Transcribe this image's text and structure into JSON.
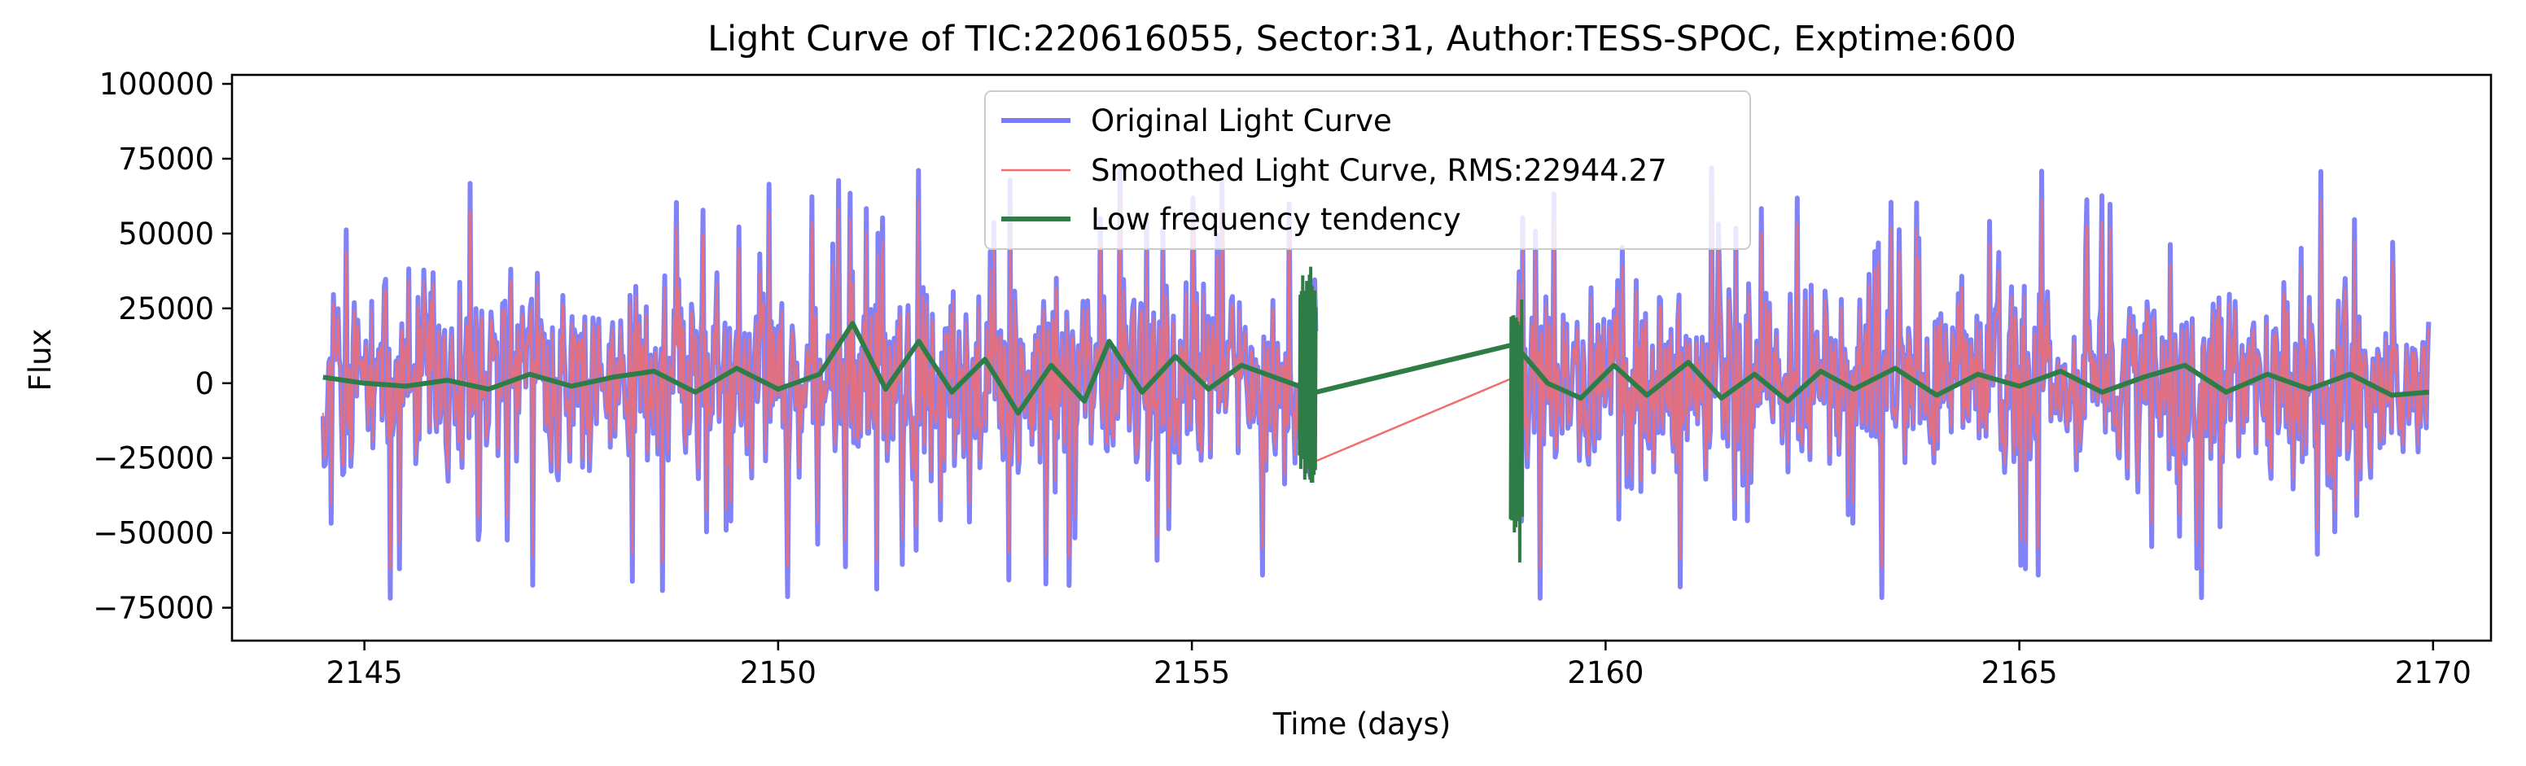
{
  "chart_data": {
    "type": "line",
    "title": "Light Curve of TIC:220616055, Sector:31, Author:TESS-SPOC, Exptime:600",
    "xlabel": "Time (days)",
    "ylabel": "Flux",
    "xlim": [
      2143.4,
      2170.7
    ],
    "ylim": [
      -86000,
      103000
    ],
    "xticks": [
      2145,
      2150,
      2155,
      2160,
      2165,
      2170
    ],
    "xtick_labels": [
      "2145",
      "2150",
      "2155",
      "2160",
      "2165",
      "2170"
    ],
    "yticks": [
      -75000,
      -50000,
      -25000,
      0,
      25000,
      50000,
      75000,
      100000
    ],
    "ytick_labels": [
      "−75000",
      "−50000",
      "−25000",
      "0",
      "25000",
      "50000",
      "75000",
      "100000"
    ],
    "grid": false,
    "legend_position": "top-center",
    "segments": [
      [
        2144.5,
        2156.5
      ],
      [
        2158.9,
        2169.95
      ]
    ],
    "series": [
      {
        "name": "Original Light Curve",
        "color": "#7b7bf8",
        "style": "noise",
        "approx_mean": 0,
        "approx_range": [
          -77000,
          91000
        ]
      },
      {
        "name": "Smoothed Light Curve, RMS:22944.27",
        "color": "#f26d6d",
        "style": "noise",
        "approx_mean": 0,
        "approx_range": [
          -76000,
          68000
        ]
      },
      {
        "name": "Low frequency tendency",
        "color": "#2e7d46",
        "style": "trend",
        "points": [
          [
            2144.5,
            2000
          ],
          [
            2145.0,
            0
          ],
          [
            2145.5,
            -1000
          ],
          [
            2146.0,
            1000
          ],
          [
            2146.5,
            -2000
          ],
          [
            2147.0,
            3000
          ],
          [
            2147.5,
            -1000
          ],
          [
            2148.0,
            2000
          ],
          [
            2148.5,
            4000
          ],
          [
            2149.0,
            -3000
          ],
          [
            2149.5,
            5000
          ],
          [
            2150.0,
            -2000
          ],
          [
            2150.5,
            3000
          ],
          [
            2150.9,
            20000
          ],
          [
            2151.3,
            -2000
          ],
          [
            2151.7,
            14000
          ],
          [
            2152.1,
            -3000
          ],
          [
            2152.5,
            8000
          ],
          [
            2152.9,
            -10000
          ],
          [
            2153.3,
            6000
          ],
          [
            2153.7,
            -6000
          ],
          [
            2154.0,
            14000
          ],
          [
            2154.4,
            -3000
          ],
          [
            2154.8,
            9000
          ],
          [
            2155.2,
            -2000
          ],
          [
            2155.6,
            6000
          ],
          [
            2156.0,
            2000
          ],
          [
            2156.5,
            -3000
          ],
          [
            2158.9,
            13000
          ],
          [
            2159.3,
            0
          ],
          [
            2159.7,
            -5000
          ],
          [
            2160.1,
            6000
          ],
          [
            2160.5,
            -4000
          ],
          [
            2161.0,
            7000
          ],
          [
            2161.4,
            -5000
          ],
          [
            2161.8,
            3000
          ],
          [
            2162.2,
            -6000
          ],
          [
            2162.6,
            4000
          ],
          [
            2163.0,
            -2000
          ],
          [
            2163.5,
            5000
          ],
          [
            2164.0,
            -4000
          ],
          [
            2164.5,
            3000
          ],
          [
            2165.0,
            -1000
          ],
          [
            2165.5,
            4000
          ],
          [
            2166.0,
            -3000
          ],
          [
            2166.5,
            2000
          ],
          [
            2167.0,
            6000
          ],
          [
            2167.5,
            -3000
          ],
          [
            2168.0,
            3000
          ],
          [
            2168.5,
            -2000
          ],
          [
            2169.0,
            3000
          ],
          [
            2169.5,
            -4000
          ],
          [
            2169.95,
            -3000
          ]
        ]
      }
    ]
  }
}
